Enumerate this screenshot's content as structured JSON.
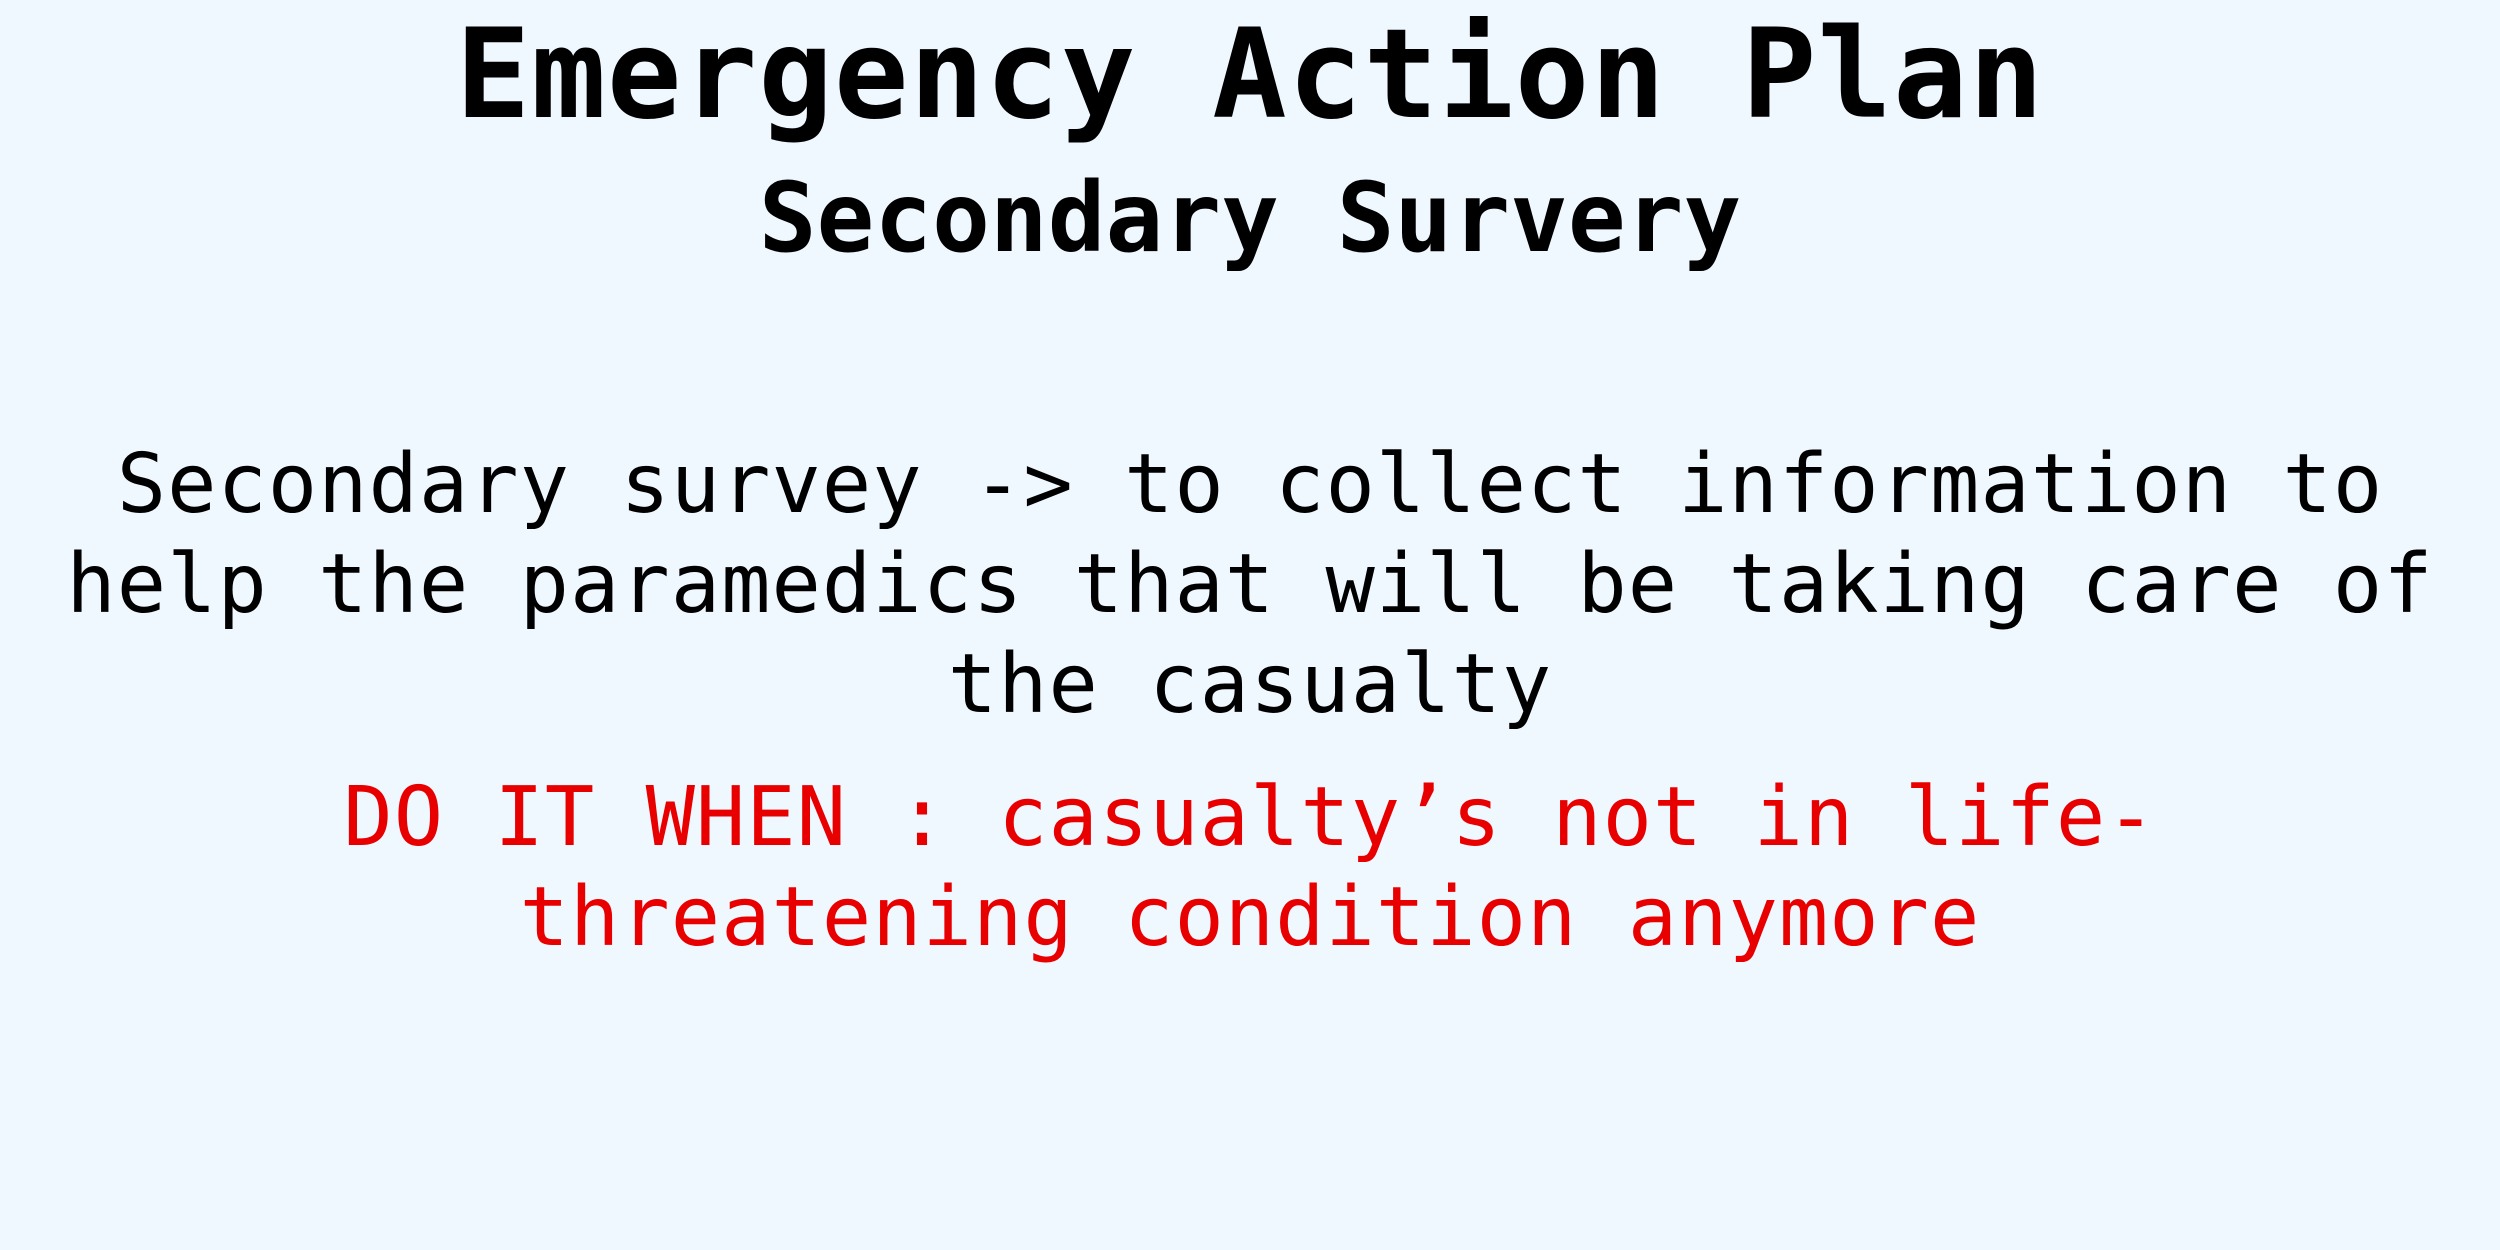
{
  "slide": {
    "title": "Emergency Action Plan",
    "subtitle": "Secondary Survery",
    "body": "Secondary survey -> to collect information to help the paramedics that will be taking care of the casualty",
    "warning": "DO IT WHEN : casualty’s not in life-threatening condition anymore"
  },
  "colors": {
    "background": "#f0f8ff",
    "text": "#000000",
    "warning": "#e80000"
  }
}
